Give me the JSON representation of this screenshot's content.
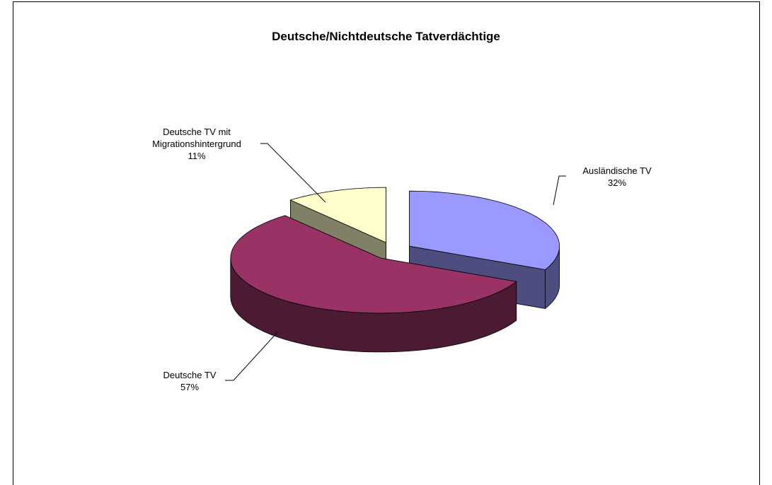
{
  "chart_data": {
    "type": "pie3d",
    "title": "Deutsche/Nichtdeutsche Tatverdächtige",
    "categories": [
      "Ausländische TV",
      "Deutsche TV",
      "Deutsche TV mit Migrationshintergrund"
    ],
    "values": [
      32,
      57,
      11
    ],
    "value_labels": [
      "32%",
      "57%",
      "11%"
    ],
    "colors": [
      "#9999ff",
      "#993366",
      "#ffffcc"
    ]
  }
}
